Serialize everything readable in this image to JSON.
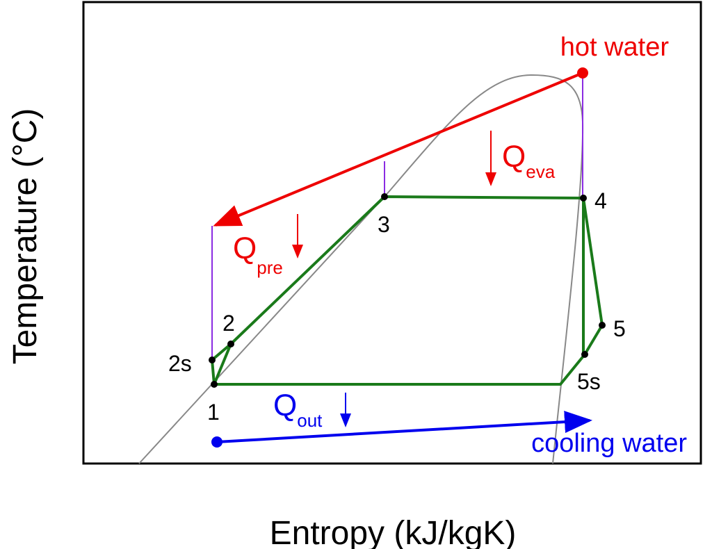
{
  "axes": {
    "x_label": "Entropy (kJ/kgK)",
    "y_label": "Temperature (°C)"
  },
  "points": [
    {
      "label": "1"
    },
    {
      "label": "2s"
    },
    {
      "label": "2"
    },
    {
      "label": "3"
    },
    {
      "label": "4"
    },
    {
      "label": "5"
    },
    {
      "label": "5s"
    }
  ],
  "heat_flows": [
    {
      "symbol": "Q",
      "subscript": "pre"
    },
    {
      "symbol": "Q",
      "subscript": "eva"
    },
    {
      "symbol": "Q",
      "subscript": "out"
    }
  ],
  "streams": {
    "hot": "hot water",
    "cold": "cooling water"
  }
}
